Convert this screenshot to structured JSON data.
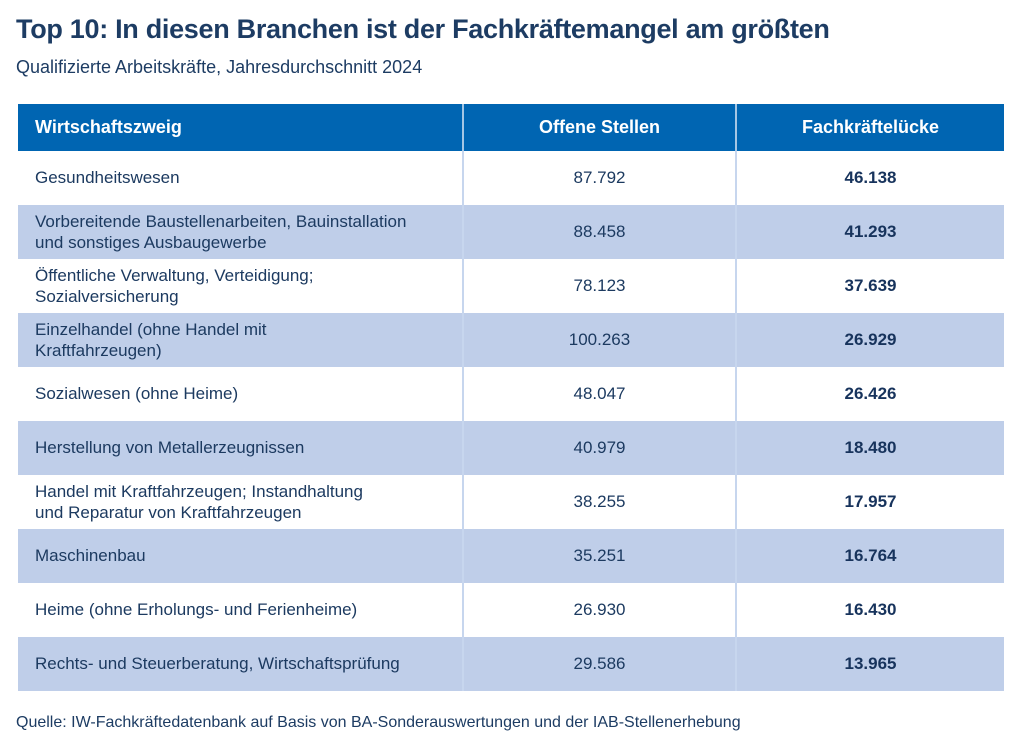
{
  "chart_data": {
    "type": "table",
    "title": "Top 10: In diesen Branchen ist der Fachkräftemangel am größten",
    "subtitle": "Qualifizierte Arbeitskräfte, Jahresdurchschnitt 2024",
    "columns": [
      "Wirtschaftszweig",
      "Offene Stellen",
      "Fachkräftelücke"
    ],
    "rows": [
      {
        "sector": "Gesundheitswesen",
        "open_positions": "87.792",
        "gap": "46.138"
      },
      {
        "sector": "Vorbereitende Baustellenarbeiten, Bauinstallation\nund sonstiges Ausbaugewerbe",
        "open_positions": "88.458",
        "gap": "41.293"
      },
      {
        "sector": "Öffentliche Verwaltung, Verteidigung;\nSozialversicherung",
        "open_positions": "78.123",
        "gap": "37.639"
      },
      {
        "sector": "Einzelhandel (ohne Handel mit\nKraftfahrzeugen)",
        "open_positions": "100.263",
        "gap": "26.929"
      },
      {
        "sector": "Sozialwesen (ohne Heime)",
        "open_positions": "48.047",
        "gap": "26.426"
      },
      {
        "sector": "Herstellung von Metallerzeugnissen",
        "open_positions": "40.979",
        "gap": "18.480"
      },
      {
        "sector": "Handel mit Kraftfahrzeugen; Instandhaltung\nund Reparatur von Kraftfahrzeugen",
        "open_positions": "38.255",
        "gap": "17.957"
      },
      {
        "sector": "Maschinenbau",
        "open_positions": "35.251",
        "gap": "16.764"
      },
      {
        "sector": "Heime (ohne Erholungs- und Ferienheime)",
        "open_positions": "26.930",
        "gap": "16.430"
      },
      {
        "sector": "Rechts- und Steuerberatung, Wirtschaftsprüfung",
        "open_positions": "29.586",
        "gap": "13.965"
      }
    ],
    "source": "Quelle: IW-Fachkräftedatenbank auf Basis von BA-Sonderauswertungen und der IAB-Stellenerhebung",
    "layout_hints": {
      "grid": "off",
      "row_striping": "alternating white / light blue",
      "bold_column": "Fachkräftelücke"
    }
  },
  "colors": {
    "header_bg": "#0065b2",
    "header_text": "#ffffff",
    "row_alt_bg": "#bfcee9",
    "row_bg": "#ffffff",
    "text": "#1c3a60",
    "title_text": "#1d3c63",
    "divider_on_white": "#c7d6ee",
    "divider_on_header": "#a5c6e4"
  }
}
